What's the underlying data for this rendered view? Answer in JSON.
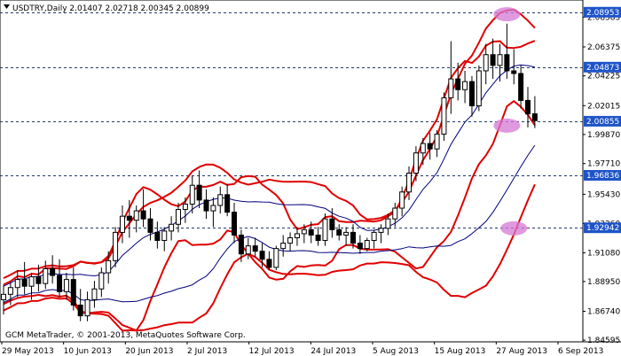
{
  "header": {
    "symbol_line": "USDTRY,Daily  2.01407 2.02718 2.00345 2.00899"
  },
  "footer": {
    "copyright": "GCM MetaTrader, © 2001-2013, MetaQuotes Software Corp."
  },
  "colors": {
    "background": "#ffffff",
    "grid": "#1f3b6e",
    "outer_band": "#e00000",
    "inner_band": "#e00000",
    "middle_line": "#00007f",
    "candle": "#000000",
    "price_tag": "#1f54c8",
    "highlight": "#d478d4"
  },
  "chart_data": {
    "type": "candlestick",
    "symbol": "USDTRY",
    "timeframe": "Daily",
    "ohlc_header": {
      "open": 2.01407,
      "high": 2.02718,
      "low": 2.00345,
      "close": 2.00899
    },
    "ylim": [
      1.8447,
      2.0986
    ],
    "y_ticks": [
      "2.08585",
      "2.06375",
      "2.04225",
      "2.02015",
      "1.99870",
      "1.97710",
      "1.95430",
      "1.93260",
      "1.91080",
      "1.88950",
      "1.86740",
      "1.84595"
    ],
    "x_ticks": [
      "29 May 2013",
      "10 Jun 2013",
      "20 Jun 2013",
      "2 Jul 2013",
      "12 Jul 2013",
      "24 Jul 2013",
      "5 Aug 2013",
      "15 Aug 2013",
      "27 Aug 2013",
      "6 Sep 2013"
    ],
    "horizontal_levels": [
      {
        "value": 2.08953,
        "label": "2.08953"
      },
      {
        "value": 2.04873,
        "label": "2.04873"
      },
      {
        "value": 2.00855,
        "label": "2.00855"
      },
      {
        "value": 1.96836,
        "label": "1.96836"
      },
      {
        "value": 1.92942,
        "label": "1.92942"
      }
    ],
    "highlights": [
      {
        "index": 72,
        "value": 2.088
      },
      {
        "index": 72,
        "value": 2.0053
      },
      {
        "index": 73,
        "value": 1.929
      }
    ],
    "candles": [
      {
        "o": 1.876,
        "h": 1.887,
        "l": 1.865,
        "c": 1.88
      },
      {
        "o": 1.88,
        "h": 1.889,
        "l": 1.872,
        "c": 1.885
      },
      {
        "o": 1.885,
        "h": 1.898,
        "l": 1.878,
        "c": 1.891
      },
      {
        "o": 1.891,
        "h": 1.904,
        "l": 1.88,
        "c": 1.886
      },
      {
        "o": 1.886,
        "h": 1.896,
        "l": 1.876,
        "c": 1.893
      },
      {
        "o": 1.893,
        "h": 1.902,
        "l": 1.882,
        "c": 1.888
      },
      {
        "o": 1.888,
        "h": 1.905,
        "l": 1.884,
        "c": 1.899
      },
      {
        "o": 1.899,
        "h": 1.909,
        "l": 1.888,
        "c": 1.894
      },
      {
        "o": 1.894,
        "h": 1.906,
        "l": 1.878,
        "c": 1.882
      },
      {
        "o": 1.882,
        "h": 1.896,
        "l": 1.876,
        "c": 1.891
      },
      {
        "o": 1.891,
        "h": 1.9,
        "l": 1.868,
        "c": 1.872
      },
      {
        "o": 1.872,
        "h": 1.884,
        "l": 1.86,
        "c": 1.864
      },
      {
        "o": 1.864,
        "h": 1.882,
        "l": 1.86,
        "c": 1.876
      },
      {
        "o": 1.876,
        "h": 1.89,
        "l": 1.87,
        "c": 1.884
      },
      {
        "o": 1.884,
        "h": 1.9,
        "l": 1.878,
        "c": 1.896
      },
      {
        "o": 1.896,
        "h": 1.912,
        "l": 1.888,
        "c": 1.905
      },
      {
        "o": 1.905,
        "h": 1.93,
        "l": 1.9,
        "c": 1.926
      },
      {
        "o": 1.926,
        "h": 1.946,
        "l": 1.918,
        "c": 1.938
      },
      {
        "o": 1.938,
        "h": 1.95,
        "l": 1.922,
        "c": 1.935
      },
      {
        "o": 1.935,
        "h": 1.946,
        "l": 1.926,
        "c": 1.942
      },
      {
        "o": 1.942,
        "h": 1.958,
        "l": 1.93,
        "c": 1.936
      },
      {
        "o": 1.936,
        "h": 1.944,
        "l": 1.92,
        "c": 1.926
      },
      {
        "o": 1.926,
        "h": 1.934,
        "l": 1.914,
        "c": 1.92
      },
      {
        "o": 1.92,
        "h": 1.93,
        "l": 1.912,
        "c": 1.927
      },
      {
        "o": 1.927,
        "h": 1.938,
        "l": 1.92,
        "c": 1.932
      },
      {
        "o": 1.932,
        "h": 1.948,
        "l": 1.926,
        "c": 1.943
      },
      {
        "o": 1.943,
        "h": 1.952,
        "l": 1.933,
        "c": 1.947
      },
      {
        "o": 1.947,
        "h": 1.968,
        "l": 1.94,
        "c": 1.961
      },
      {
        "o": 1.961,
        "h": 1.972,
        "l": 1.944,
        "c": 1.95
      },
      {
        "o": 1.95,
        "h": 1.958,
        "l": 1.936,
        "c": 1.942
      },
      {
        "o": 1.942,
        "h": 1.952,
        "l": 1.93,
        "c": 1.946
      },
      {
        "o": 1.946,
        "h": 1.96,
        "l": 1.94,
        "c": 1.954
      },
      {
        "o": 1.954,
        "h": 1.962,
        "l": 1.938,
        "c": 1.941
      },
      {
        "o": 1.941,
        "h": 1.948,
        "l": 1.918,
        "c": 1.924
      },
      {
        "o": 1.924,
        "h": 1.928,
        "l": 1.904,
        "c": 1.91
      },
      {
        "o": 1.91,
        "h": 1.922,
        "l": 1.906,
        "c": 1.916
      },
      {
        "o": 1.916,
        "h": 1.922,
        "l": 1.908,
        "c": 1.912
      },
      {
        "o": 1.912,
        "h": 1.918,
        "l": 1.9,
        "c": 1.906
      },
      {
        "o": 1.906,
        "h": 1.912,
        "l": 1.898,
        "c": 1.9
      },
      {
        "o": 1.9,
        "h": 1.916,
        "l": 1.898,
        "c": 1.914
      },
      {
        "o": 1.914,
        "h": 1.924,
        "l": 1.908,
        "c": 1.918
      },
      {
        "o": 1.918,
        "h": 1.926,
        "l": 1.912,
        "c": 1.922
      },
      {
        "o": 1.922,
        "h": 1.93,
        "l": 1.916,
        "c": 1.925
      },
      {
        "o": 1.925,
        "h": 1.932,
        "l": 1.918,
        "c": 1.928
      },
      {
        "o": 1.928,
        "h": 1.934,
        "l": 1.918,
        "c": 1.924
      },
      {
        "o": 1.924,
        "h": 1.93,
        "l": 1.916,
        "c": 1.92
      },
      {
        "o": 1.92,
        "h": 1.94,
        "l": 1.916,
        "c": 1.936
      },
      {
        "o": 1.936,
        "h": 1.944,
        "l": 1.922,
        "c": 1.928
      },
      {
        "o": 1.928,
        "h": 1.932,
        "l": 1.92,
        "c": 1.924
      },
      {
        "o": 1.924,
        "h": 1.93,
        "l": 1.916,
        "c": 1.926
      },
      {
        "o": 1.926,
        "h": 1.932,
        "l": 1.914,
        "c": 1.918
      },
      {
        "o": 1.918,
        "h": 1.924,
        "l": 1.91,
        "c": 1.914
      },
      {
        "o": 1.914,
        "h": 1.922,
        "l": 1.912,
        "c": 1.92
      },
      {
        "o": 1.92,
        "h": 1.928,
        "l": 1.914,
        "c": 1.926
      },
      {
        "o": 1.926,
        "h": 1.932,
        "l": 1.918,
        "c": 1.929
      },
      {
        "o": 1.929,
        "h": 1.94,
        "l": 1.924,
        "c": 1.936
      },
      {
        "o": 1.936,
        "h": 1.948,
        "l": 1.93,
        "c": 1.944
      },
      {
        "o": 1.944,
        "h": 1.96,
        "l": 1.938,
        "c": 1.956
      },
      {
        "o": 1.956,
        "h": 1.975,
        "l": 1.95,
        "c": 1.97
      },
      {
        "o": 1.97,
        "h": 1.99,
        "l": 1.964,
        "c": 1.985
      },
      {
        "o": 1.985,
        "h": 1.996,
        "l": 1.976,
        "c": 1.992
      },
      {
        "o": 1.992,
        "h": 2.0,
        "l": 1.98,
        "c": 1.988
      },
      {
        "o": 1.988,
        "h": 2.002,
        "l": 1.982,
        "c": 1.999
      },
      {
        "o": 1.999,
        "h": 2.03,
        "l": 1.994,
        "c": 2.026
      },
      {
        "o": 2.026,
        "h": 2.068,
        "l": 2.014,
        "c": 2.04
      },
      {
        "o": 2.04,
        "h": 2.052,
        "l": 2.024,
        "c": 2.032
      },
      {
        "o": 2.032,
        "h": 2.046,
        "l": 2.022,
        "c": 2.038
      },
      {
        "o": 2.038,
        "h": 2.042,
        "l": 2.012,
        "c": 2.02
      },
      {
        "o": 2.02,
        "h": 2.05,
        "l": 2.016,
        "c": 2.046
      },
      {
        "o": 2.046,
        "h": 2.066,
        "l": 2.036,
        "c": 2.058
      },
      {
        "o": 2.058,
        "h": 2.07,
        "l": 2.04,
        "c": 2.05
      },
      {
        "o": 2.05,
        "h": 2.066,
        "l": 2.038,
        "c": 2.058
      },
      {
        "o": 2.058,
        "h": 2.081,
        "l": 2.04,
        "c": 2.046
      },
      {
        "o": 2.046,
        "h": 2.062,
        "l": 2.036,
        "c": 2.044
      },
      {
        "o": 2.044,
        "h": 2.05,
        "l": 2.018,
        "c": 2.024
      },
      {
        "o": 2.024,
        "h": 2.034,
        "l": 2.004,
        "c": 2.014
      },
      {
        "o": 2.01407,
        "h": 2.02718,
        "l": 2.00345,
        "c": 2.00899
      }
    ]
  }
}
